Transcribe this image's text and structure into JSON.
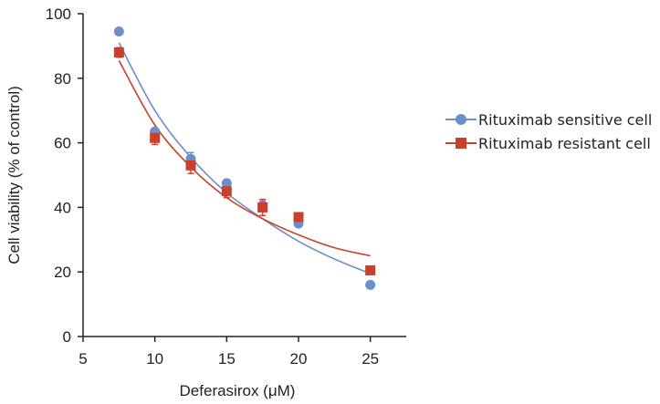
{
  "chart_data": {
    "type": "scatter",
    "xlabel": "Deferasirox (μM)",
    "ylabel": "Cell viability (% of control)",
    "xlim": [
      5,
      27.5
    ],
    "ylim": [
      0,
      100
    ],
    "xticks": [
      "5",
      "10",
      "15",
      "20",
      "25"
    ],
    "yticks": [
      "0",
      "20",
      "40",
      "60",
      "80",
      "100"
    ],
    "legend_position": "right",
    "series": [
      {
        "name": "Rituximab sensitive cell",
        "color": "#6b8fc8",
        "marker": "circle",
        "x": [
          7.5,
          10,
          12.5,
          15,
          17.5,
          20,
          25
        ],
        "y": [
          94.5,
          63.5,
          55.0,
          47.5,
          40.5,
          35.0,
          16.0
        ],
        "error": [
          0,
          1.0,
          2.0,
          1.0,
          1.5,
          1.0,
          0
        ],
        "fit_x": [
          7.5,
          10,
          12.5,
          15,
          17.5,
          20,
          22.5,
          25
        ],
        "fit_y": [
          91.0,
          70.0,
          55.5,
          44.5,
          36.5,
          29.5,
          24.0,
          19.5
        ]
      },
      {
        "name": "Rituximab resistant cell",
        "color": "#c9412b",
        "marker": "square",
        "x": [
          7.5,
          10,
          12.5,
          15,
          17.5,
          20,
          25
        ],
        "y": [
          88.0,
          61.5,
          53.0,
          45.0,
          40.0,
          37.0,
          20.5
        ],
        "error": [
          1.5,
          2.0,
          2.5,
          2.0,
          2.5,
          1.0,
          0
        ],
        "fit_x": [
          7.5,
          10,
          12.5,
          15,
          17.5,
          20,
          22.5,
          25
        ],
        "fit_y": [
          85.5,
          65.5,
          52.5,
          43.0,
          36.5,
          31.5,
          27.5,
          25.0
        ]
      }
    ]
  }
}
